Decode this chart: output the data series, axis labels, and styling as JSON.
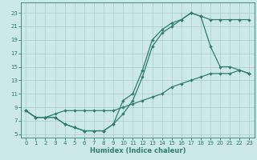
{
  "xlabel": "Humidex (Indice chaleur)",
  "bg_color": "#cce8e8",
  "grid_color": "#aacccc",
  "line_color": "#2e7f70",
  "xlim": [
    -0.5,
    23.5
  ],
  "ylim": [
    4.5,
    24.5
  ],
  "xticks": [
    0,
    1,
    2,
    3,
    4,
    5,
    6,
    7,
    8,
    9,
    10,
    11,
    12,
    13,
    14,
    15,
    16,
    17,
    18,
    19,
    20,
    21,
    22,
    23
  ],
  "yticks": [
    5,
    7,
    9,
    11,
    13,
    15,
    17,
    19,
    21,
    23
  ],
  "line1_x": [
    0,
    1,
    2,
    3,
    4,
    5,
    6,
    7,
    8,
    9,
    10,
    11,
    12,
    13,
    14,
    15,
    16,
    17,
    18,
    19,
    20,
    21,
    22,
    23
  ],
  "line1_y": [
    8.5,
    7.5,
    7.5,
    7.5,
    6.5,
    6,
    5.5,
    5.5,
    5.5,
    6.5,
    10,
    11,
    14.5,
    19,
    20.5,
    21.5,
    22,
    23,
    22.5,
    22,
    22,
    22,
    22,
    22
  ],
  "line2_x": [
    0,
    1,
    2,
    3,
    4,
    5,
    6,
    7,
    8,
    9,
    10,
    11,
    12,
    13,
    14,
    15,
    16,
    17,
    18,
    19,
    20,
    21,
    22,
    23
  ],
  "line2_y": [
    8.5,
    7.5,
    7.5,
    7.5,
    6.5,
    6,
    5.5,
    5.5,
    5.5,
    6.5,
    8,
    10,
    13.5,
    18,
    20,
    21,
    22,
    23,
    22.5,
    18,
    15,
    15,
    14.5,
    14
  ],
  "line3_x": [
    0,
    1,
    2,
    3,
    4,
    5,
    6,
    7,
    8,
    9,
    10,
    11,
    12,
    13,
    14,
    15,
    16,
    17,
    18,
    19,
    20,
    21,
    22,
    23
  ],
  "line3_y": [
    8.5,
    7.5,
    7.5,
    8,
    8.5,
    8.5,
    8.5,
    8.5,
    8.5,
    8.5,
    9,
    9.5,
    10,
    10.5,
    11,
    12,
    12.5,
    13,
    13.5,
    14,
    14,
    14,
    14.5,
    14
  ],
  "marker": "D",
  "markersize": 2.2,
  "linewidth": 0.9,
  "xlabel_fontsize": 6.0,
  "tick_fontsize": 5.0
}
